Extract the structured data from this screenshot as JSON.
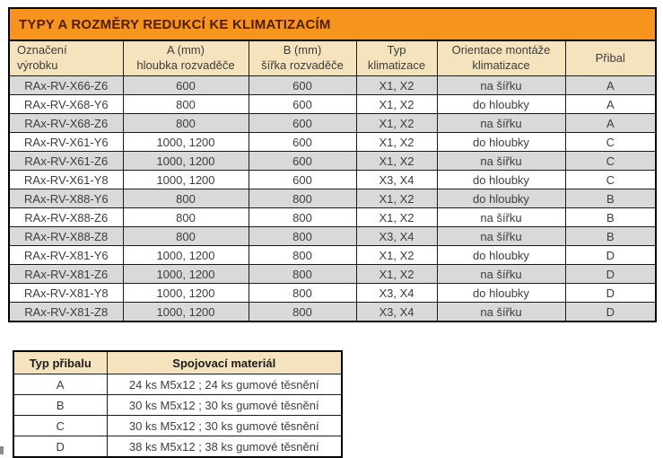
{
  "colors": {
    "title_bg": "#F7941D",
    "title_text": "#501E00",
    "header_bg": "#F4E3BC",
    "row_alt_bg": "#D9D9D9",
    "row_bg": "#FFFFFF",
    "border": "#000000",
    "body_text": "#3D3D3D"
  },
  "main_table": {
    "title": "TYPY A ROZMĚRY REDUKCÍ KE KLIMATIZACÍM",
    "columns": [
      {
        "line1": "Označení",
        "line2": "výrobku"
      },
      {
        "line1": "A (mm)",
        "line2": "hloubka rozvaděče"
      },
      {
        "line1": "B (mm)",
        "line2": "šířka rozvaděče"
      },
      {
        "line1": "Typ",
        "line2": "klimatizace"
      },
      {
        "line1": "Orientace montáže",
        "line2": "klimatizace"
      },
      {
        "line1": "Přibal",
        "line2": ""
      }
    ],
    "rows": [
      [
        "RAx-RV-X66-Z6",
        "600",
        "600",
        "X1, X2",
        "na šířku",
        "A"
      ],
      [
        "RAx-RV-X68-Y6",
        "800",
        "600",
        "X1, X2",
        "do hloubky",
        "A"
      ],
      [
        "RAx-RV-X68-Z6",
        "800",
        "600",
        "X1, X2",
        "na šířku",
        "A"
      ],
      [
        "RAx-RV-X61-Y6",
        "1000, 1200",
        "600",
        "X1, X2",
        "do hloubky",
        "C"
      ],
      [
        "RAx-RV-X61-Z6",
        "1000, 1200",
        "600",
        "X1, X2",
        "na šířku",
        "C"
      ],
      [
        "RAx-RV-X61-Y8",
        "1000, 1200",
        "600",
        "X3, X4",
        "do hloubky",
        "C"
      ],
      [
        "RAx-RV-X88-Y6",
        "800",
        "800",
        "X1, X2",
        "do hloubky",
        "B"
      ],
      [
        "RAx-RV-X88-Z6",
        "800",
        "800",
        "X1, X2",
        "na šířku",
        "B"
      ],
      [
        "RAx-RV-X88-Z8",
        "800",
        "800",
        "X3, X4",
        "na šířku",
        "B"
      ],
      [
        "RAx-RV-X81-Y6",
        "1000, 1200",
        "800",
        "X1, X2",
        "do hloubky",
        "D"
      ],
      [
        "RAx-RV-X81-Z6",
        "1000, 1200",
        "800",
        "X1, X2",
        "na šířku",
        "D"
      ],
      [
        "RAx-RV-X81-Y8",
        "1000, 1200",
        "800",
        "X3, X4",
        "do hloubky",
        "D"
      ],
      [
        "RAx-RV-X81-Z8",
        "1000, 1200",
        "800",
        "X3, X4",
        "na šířku",
        "D"
      ]
    ]
  },
  "accessory_table": {
    "headers": [
      "Typ přibalu",
      "Spojovací materiál"
    ],
    "rows": [
      [
        "A",
        "24 ks M5x12 ; 24 ks gumové těsnění"
      ],
      [
        "B",
        "30 ks M5x12 ; 30 ks gumové těsnění"
      ],
      [
        "C",
        "30 ks M5x12 ; 30 ks gumové těsnění"
      ],
      [
        "D",
        "38 ks M5x12 ; 38 ks gumové těsnění"
      ]
    ]
  }
}
